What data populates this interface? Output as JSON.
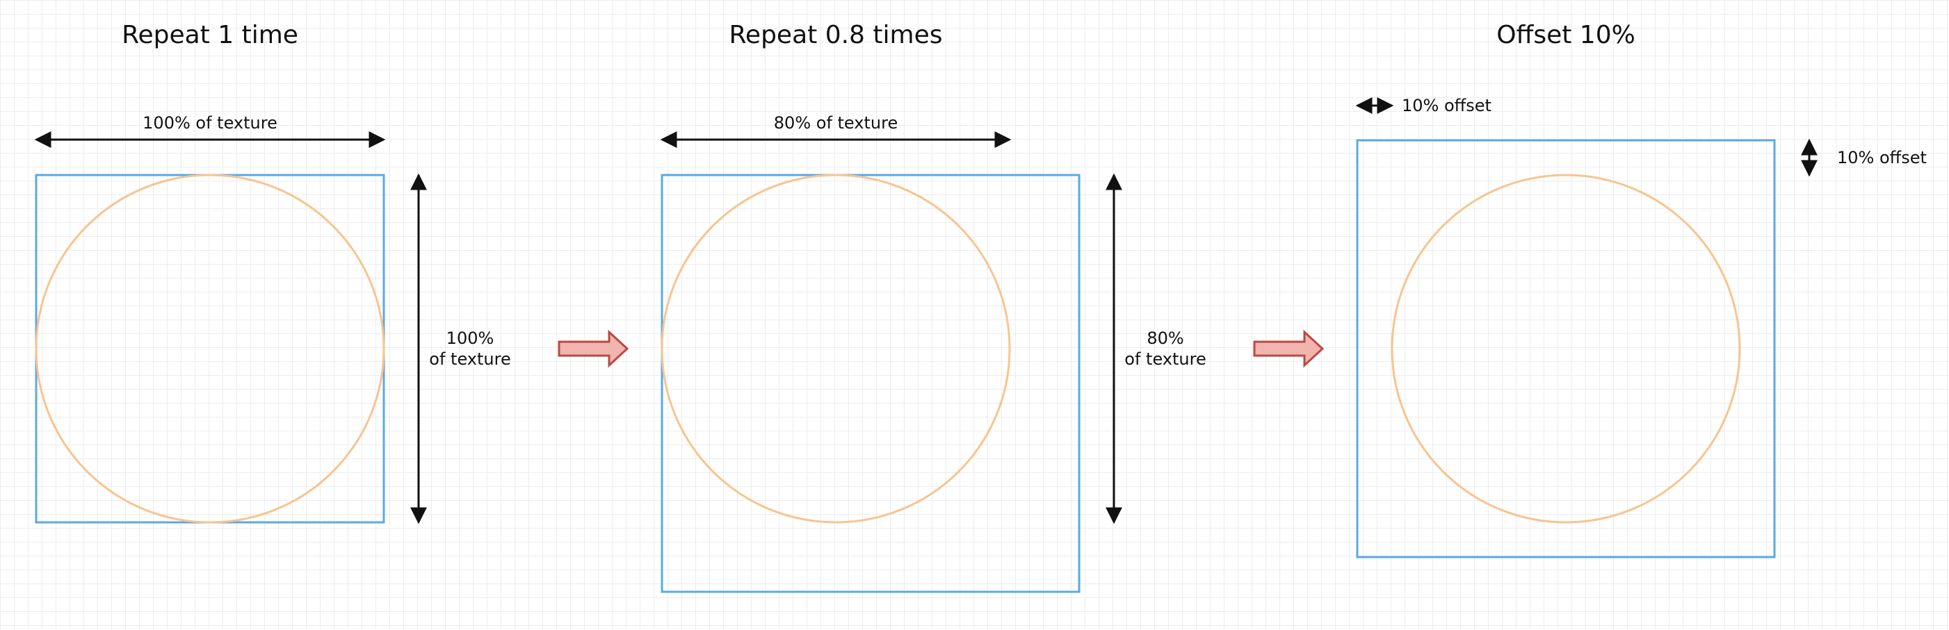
{
  "colors": {
    "square": "#5aa9e6",
    "circle": "#f8c48f",
    "arrow": "#111111",
    "transition_arrow_fill": "#f2b4ae",
    "transition_arrow_stroke": "#b84a44"
  },
  "panels": [
    {
      "title": "Repeat 1 time",
      "horizontal_label": "100% of texture",
      "vertical_label_line1": "100%",
      "vertical_label_line2": "of texture"
    },
    {
      "title": "Repeat 0.8 times",
      "horizontal_label": "80% of texture",
      "vertical_label_line1": "80%",
      "vertical_label_line2": "of texture"
    },
    {
      "title": "Offset 10%",
      "horizontal_label": "10% offset",
      "vertical_label": "10% offset"
    }
  ]
}
